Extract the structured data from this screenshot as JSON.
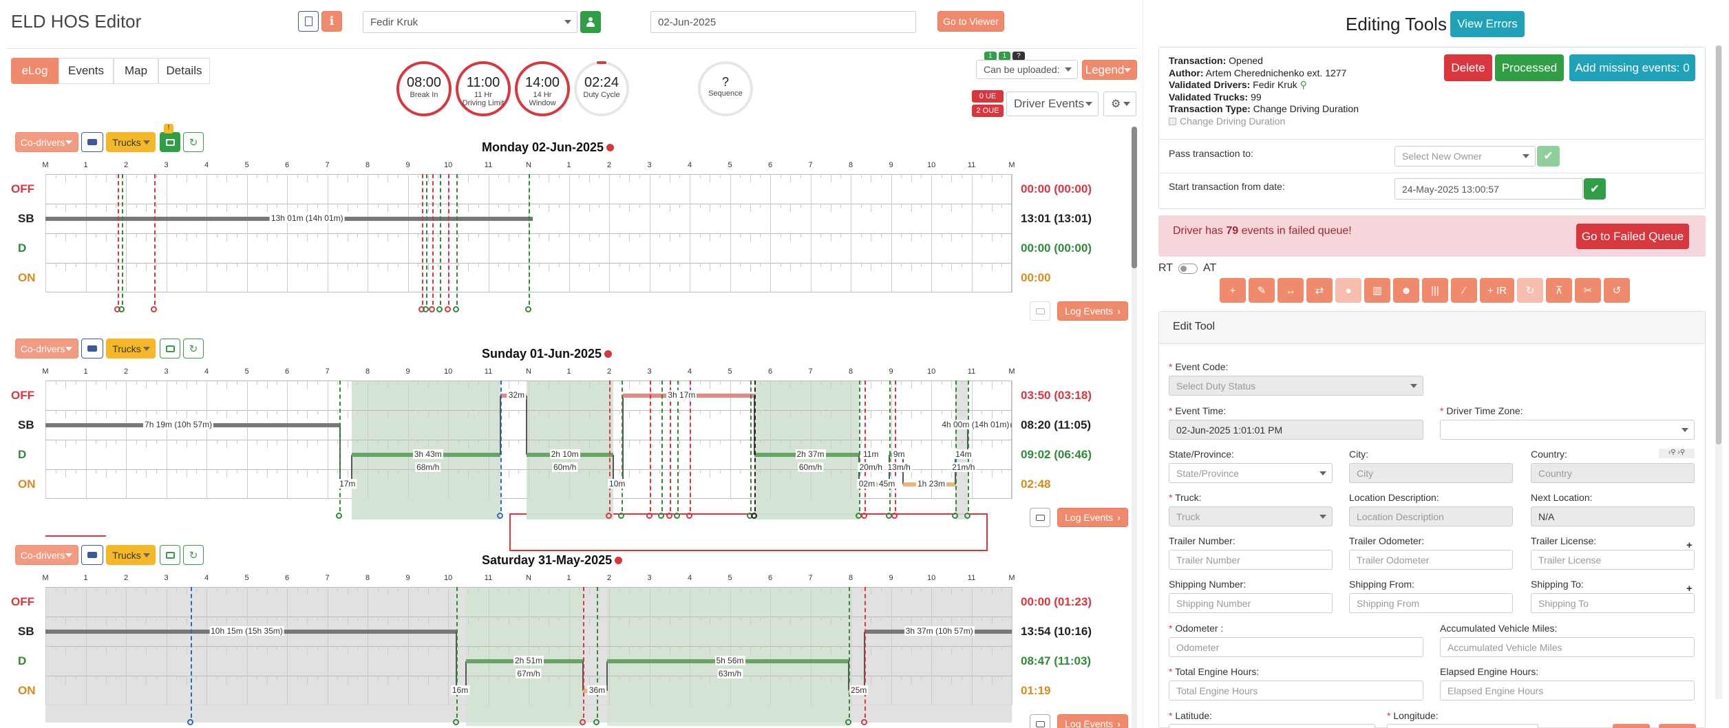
{
  "app": {
    "title": "ELD HOS Editor",
    "go_to_viewer": "Go to Viewer"
  },
  "driver_select": {
    "value": "Fedir Kruk"
  },
  "date_field": {
    "value": "02-Jun-2025"
  },
  "tabs": [
    {
      "label": "eLog",
      "active": true
    },
    {
      "label": "Events"
    },
    {
      "label": "Map"
    },
    {
      "label": "Details"
    }
  ],
  "clocks": [
    {
      "value": "08:00",
      "label1": "Break In",
      "label2": ""
    },
    {
      "value": "11:00",
      "label1": "11 Hr",
      "label2": "Driving Limit"
    },
    {
      "value": "14:00",
      "label1": "14 Hr",
      "label2": "Window"
    },
    {
      "value": "02:24",
      "label1": "Duty Cycle",
      "label2": ""
    }
  ],
  "sequence": {
    "value": "?",
    "label": "Sequence"
  },
  "upload_select": {
    "value": "Can be uploaded:"
  },
  "legend_btn": "Legend",
  "ue_badge": "0 UE",
  "oue_badge": "2 OUE",
  "driver_events_select": "Driver Events",
  "badges_top": [
    "1",
    "1",
    "?"
  ],
  "hour_labels": [
    "M",
    "1",
    "2",
    "3",
    "4",
    "5",
    "6",
    "7",
    "8",
    "9",
    "10",
    "11",
    "N",
    "1",
    "2",
    "3",
    "4",
    "5",
    "6",
    "7",
    "8",
    "9",
    "10",
    "11",
    "M"
  ],
  "row_labels": [
    "OFF",
    "SB",
    "D",
    "ON"
  ],
  "status_colors": {
    "OFF": "#d9363e",
    "SB": "#222222",
    "D": "#2f8a3a",
    "ON": "#d98a1e"
  },
  "toolbar": {
    "co_drivers": "Co-drivers",
    "trucks": "Trucks",
    "truck_badge": "!"
  },
  "log_events_btn": "Log Events",
  "days": [
    {
      "title": "Monday 02-Jun-2025",
      "totals": [
        "00:00 (00:00)",
        "13:01 (13:01)",
        "00:00 (00:00)",
        "00:00"
      ],
      "labels": [
        {
          "text": "13h 01m (14h 01m)",
          "hour": 6.5,
          "row": 1
        }
      ]
    },
    {
      "title": "Sunday 01-Jun-2025",
      "totals": [
        "03:50 (03:18)",
        "08:20 (11:05)",
        "09:02 (06:46)",
        "02:48"
      ],
      "labels": [
        {
          "text": "7h 19m (10h 57m)",
          "hour": 3.3,
          "row": 1
        },
        {
          "text": "32m",
          "hour": 11.7,
          "row": 0
        },
        {
          "text": "3h 17m",
          "hour": 15.8,
          "row": 0
        },
        {
          "text": "4h 00m (14h 01m)",
          "hour": 23.1,
          "row": 1
        },
        {
          "text": "3h 43m",
          "hour": 9.5,
          "row": 2
        },
        {
          "text": "68m/h",
          "hour": 9.5,
          "row": 2.45
        },
        {
          "text": "2h 10m",
          "hour": 12.9,
          "row": 2
        },
        {
          "text": "60m/h",
          "hour": 12.9,
          "row": 2.45
        },
        {
          "text": "2h 37m",
          "hour": 19.0,
          "row": 2
        },
        {
          "text": "60m/h",
          "hour": 19.0,
          "row": 2.45
        },
        {
          "text": "11m",
          "hour": 20.5,
          "row": 2
        },
        {
          "text": "9m",
          "hour": 21.2,
          "row": 2
        },
        {
          "text": "14m",
          "hour": 22.8,
          "row": 2
        },
        {
          "text": "20m/h",
          "hour": 20.5,
          "row": 2.45
        },
        {
          "text": "13m/h",
          "hour": 21.2,
          "row": 2.45
        },
        {
          "text": "21m/h",
          "hour": 22.8,
          "row": 2.45
        },
        {
          "text": "17m",
          "hour": 7.5,
          "row": 3
        },
        {
          "text": "10m",
          "hour": 14.2,
          "row": 3
        },
        {
          "text": "02m",
          "hour": 20.4,
          "row": 3
        },
        {
          "text": "45m",
          "hour": 20.9,
          "row": 3
        },
        {
          "text": "1h 23m",
          "hour": 22.0,
          "row": 3
        }
      ]
    },
    {
      "title": "Saturday 31-May-2025",
      "totals": [
        "00:00 (01:23)",
        "13:54 (10:16)",
        "08:47 (11:03)",
        "01:19"
      ],
      "labels": [
        {
          "text": "10h 15m (15h 35m)",
          "hour": 5.0,
          "row": 1
        },
        {
          "text": "3h 37m (10h 57m)",
          "hour": 22.2,
          "row": 1
        },
        {
          "text": "2h 51m",
          "hour": 12.0,
          "row": 2
        },
        {
          "text": "67m/h",
          "hour": 12.0,
          "row": 2.45
        },
        {
          "text": "5h 56m",
          "hour": 17.0,
          "row": 2
        },
        {
          "text": "63m/h",
          "hour": 17.0,
          "row": 2.45
        },
        {
          "text": "16m",
          "hour": 10.3,
          "row": 3
        },
        {
          "text": "36m",
          "hour": 13.7,
          "row": 3
        },
        {
          "text": "25m",
          "hour": 20.2,
          "row": 3
        }
      ]
    }
  ],
  "right": {
    "title": "Editing Tools",
    "view_errors": "View Errors",
    "transaction": {
      "k1": "Transaction:",
      "v1": "Opened",
      "k2": "Author:",
      "v2": "Artem Cherednichenko ext. 1277",
      "k3": "Validated Drivers:",
      "v3": "Fedir Kruk",
      "k4": "Validated Trucks:",
      "v4": "99",
      "k5": "Transaction Type:",
      "v5": "Change Driving Duration",
      "checkbox": "Change Driving Duration"
    },
    "delete": "Delete",
    "processed": "Processed",
    "add_missing": "Add missing events: 0",
    "pass_label": "Pass transaction to:",
    "pass_placeholder": "Select New Owner",
    "start_label": "Start transaction from date:",
    "start_value": "24-May-2025 13:00:57",
    "failed_prefix": "Driver has ",
    "failed_count": "79",
    "failed_suffix": " events in failed queue!",
    "go_failed": "Go to Failed Queue",
    "rt": "RT",
    "at": "AT",
    "ir": "+ IR",
    "edit_tool": "Edit Tool",
    "fields": {
      "event_code": "Event Code:",
      "event_code_ph": "Select Duty Status",
      "event_time": "Event Time:",
      "event_time_val": "02-Jun-2025 1:01:01 PM",
      "driver_tz": "Driver Time Zone:",
      "state": "State/Province:",
      "state_ph": "State/Province",
      "city": "City:",
      "city_ph": "City",
      "country": "Country:",
      "country_ph": "Country",
      "truck": "Truck:",
      "truck_ph": "Truck",
      "loc_desc": "Location Description:",
      "loc_desc_ph": "Location Description",
      "next_loc": "Next Location:",
      "next_loc_val": "N/A",
      "trailer_num": "Trailer Number:",
      "trailer_num_ph": "Trailer Number",
      "trailer_odo": "Trailer Odometer:",
      "trailer_odo_ph": "Trailer Odometer",
      "trailer_lic": "Trailer License:",
      "trailer_lic_ph": "Trailer License",
      "ship_num": "Shipping Number:",
      "ship_num_ph": "Shipping Number",
      "ship_from": "Shipping From:",
      "ship_from_ph": "Shipping From",
      "ship_to": "Shipping To:",
      "ship_to_ph": "Shipping To",
      "odometer": "Odometer :",
      "odometer_ph": "Odometer",
      "acc_miles": "Accumulated Vehicle Miles:",
      "acc_miles_ph": "Accumulated Vehicle Miles",
      "total_hours": "Total Engine Hours:",
      "total_hours_ph": "Total Engine Hours",
      "elapsed_hours": "Elapsed Engine Hours:",
      "elapsed_hours_ph": "Elapsed Engine Hours",
      "latitude": "Latitude:",
      "longitude": "Longitude:"
    }
  }
}
